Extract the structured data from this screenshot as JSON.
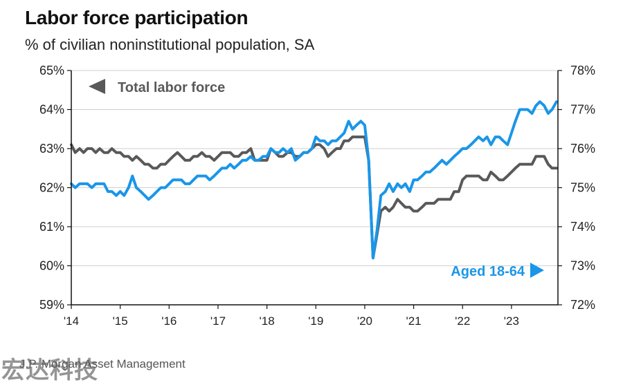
{
  "title": "Labor force participation",
  "subtitle": "% of civilian noninstitutional population, SA",
  "source": "J.P. Morgan Asset Management",
  "watermark": "宏达科技",
  "colors": {
    "total": "#595959",
    "aged": "#1a96e8",
    "axis": "#111111",
    "grid": "#cfcfcf"
  },
  "chart_data": {
    "type": "line",
    "x_tick_labels": [
      "'14",
      "'15",
      "'16",
      "'17",
      "'18",
      "'19",
      "'20",
      "'21",
      "'22",
      "'23"
    ],
    "x_range": [
      2014.0,
      2023.95
    ],
    "left_axis": {
      "ylim": [
        59,
        65
      ],
      "ticks": [
        "59%",
        "60%",
        "61%",
        "62%",
        "63%",
        "64%",
        "65%"
      ]
    },
    "right_axis": {
      "ylim": [
        72,
        78
      ],
      "ticks": [
        "72%",
        "73%",
        "74%",
        "75%",
        "76%",
        "77%",
        "78%"
      ]
    },
    "grid": "horizontal",
    "series": [
      {
        "name": "Total labor force",
        "axis": "left",
        "legend_position": "top-left",
        "points": [
          [
            2014.0,
            63.1
          ],
          [
            2014.08,
            62.9
          ],
          [
            2014.17,
            63.0
          ],
          [
            2014.25,
            62.9
          ],
          [
            2014.33,
            63.0
          ],
          [
            2014.42,
            63.0
          ],
          [
            2014.5,
            62.9
          ],
          [
            2014.58,
            63.0
          ],
          [
            2014.67,
            62.9
          ],
          [
            2014.75,
            62.9
          ],
          [
            2014.83,
            63.0
          ],
          [
            2014.92,
            62.9
          ],
          [
            2015.0,
            62.9
          ],
          [
            2015.08,
            62.8
          ],
          [
            2015.17,
            62.8
          ],
          [
            2015.25,
            62.7
          ],
          [
            2015.33,
            62.8
          ],
          [
            2015.42,
            62.7
          ],
          [
            2015.5,
            62.6
          ],
          [
            2015.58,
            62.6
          ],
          [
            2015.67,
            62.5
          ],
          [
            2015.75,
            62.5
          ],
          [
            2015.83,
            62.6
          ],
          [
            2015.92,
            62.6
          ],
          [
            2016.0,
            62.7
          ],
          [
            2016.08,
            62.8
          ],
          [
            2016.17,
            62.9
          ],
          [
            2016.25,
            62.8
          ],
          [
            2016.33,
            62.7
          ],
          [
            2016.42,
            62.7
          ],
          [
            2016.5,
            62.8
          ],
          [
            2016.58,
            62.8
          ],
          [
            2016.67,
            62.9
          ],
          [
            2016.75,
            62.8
          ],
          [
            2016.83,
            62.8
          ],
          [
            2016.92,
            62.7
          ],
          [
            2017.0,
            62.8
          ],
          [
            2017.08,
            62.9
          ],
          [
            2017.17,
            62.9
          ],
          [
            2017.25,
            62.9
          ],
          [
            2017.33,
            62.8
          ],
          [
            2017.42,
            62.8
          ],
          [
            2017.5,
            62.9
          ],
          [
            2017.58,
            62.9
          ],
          [
            2017.67,
            63.0
          ],
          [
            2017.75,
            62.7
          ],
          [
            2017.83,
            62.7
          ],
          [
            2017.92,
            62.7
          ],
          [
            2018.0,
            62.7
          ],
          [
            2018.08,
            63.0
          ],
          [
            2018.17,
            62.9
          ],
          [
            2018.25,
            62.8
          ],
          [
            2018.33,
            62.8
          ],
          [
            2018.42,
            62.9
          ],
          [
            2018.5,
            62.9
          ],
          [
            2018.58,
            62.8
          ],
          [
            2018.67,
            62.8
          ],
          [
            2018.75,
            62.9
          ],
          [
            2018.83,
            62.9
          ],
          [
            2018.92,
            63.0
          ],
          [
            2019.0,
            63.1
          ],
          [
            2019.08,
            63.1
          ],
          [
            2019.17,
            63.0
          ],
          [
            2019.25,
            62.8
          ],
          [
            2019.33,
            62.9
          ],
          [
            2019.42,
            63.0
          ],
          [
            2019.5,
            63.0
          ],
          [
            2019.58,
            63.2
          ],
          [
            2019.67,
            63.2
          ],
          [
            2019.75,
            63.3
          ],
          [
            2019.83,
            63.3
          ],
          [
            2019.92,
            63.3
          ],
          [
            2020.0,
            63.3
          ],
          [
            2020.08,
            62.7
          ],
          [
            2020.17,
            60.2
          ],
          [
            2020.25,
            60.8
          ],
          [
            2020.33,
            61.4
          ],
          [
            2020.42,
            61.5
          ],
          [
            2020.5,
            61.4
          ],
          [
            2020.58,
            61.5
          ],
          [
            2020.67,
            61.7
          ],
          [
            2020.75,
            61.6
          ],
          [
            2020.83,
            61.5
          ],
          [
            2020.92,
            61.5
          ],
          [
            2021.0,
            61.4
          ],
          [
            2021.08,
            61.4
          ],
          [
            2021.17,
            61.5
          ],
          [
            2021.25,
            61.6
          ],
          [
            2021.33,
            61.6
          ],
          [
            2021.42,
            61.6
          ],
          [
            2021.5,
            61.7
          ],
          [
            2021.58,
            61.7
          ],
          [
            2021.67,
            61.7
          ],
          [
            2021.75,
            61.7
          ],
          [
            2021.83,
            61.9
          ],
          [
            2021.92,
            61.9
          ],
          [
            2022.0,
            62.2
          ],
          [
            2022.08,
            62.3
          ],
          [
            2022.17,
            62.3
          ],
          [
            2022.25,
            62.3
          ],
          [
            2022.33,
            62.3
          ],
          [
            2022.42,
            62.2
          ],
          [
            2022.5,
            62.2
          ],
          [
            2022.58,
            62.4
          ],
          [
            2022.67,
            62.3
          ],
          [
            2022.75,
            62.2
          ],
          [
            2022.83,
            62.2
          ],
          [
            2022.92,
            62.3
          ],
          [
            2023.0,
            62.4
          ],
          [
            2023.08,
            62.5
          ],
          [
            2023.17,
            62.6
          ],
          [
            2023.25,
            62.6
          ],
          [
            2023.33,
            62.6
          ],
          [
            2023.42,
            62.6
          ],
          [
            2023.5,
            62.8
          ],
          [
            2023.58,
            62.8
          ],
          [
            2023.67,
            62.8
          ],
          [
            2023.75,
            62.6
          ],
          [
            2023.83,
            62.5
          ],
          [
            2023.92,
            62.5
          ]
        ]
      },
      {
        "name": "Aged 18-64",
        "axis": "right",
        "legend_position": "bottom-right",
        "points": [
          [
            2014.0,
            75.1
          ],
          [
            2014.08,
            75.0
          ],
          [
            2014.17,
            75.1
          ],
          [
            2014.25,
            75.1
          ],
          [
            2014.33,
            75.1
          ],
          [
            2014.42,
            75.0
          ],
          [
            2014.5,
            75.1
          ],
          [
            2014.58,
            75.1
          ],
          [
            2014.67,
            75.1
          ],
          [
            2014.75,
            74.9
          ],
          [
            2014.83,
            74.9
          ],
          [
            2014.92,
            74.8
          ],
          [
            2015.0,
            74.9
          ],
          [
            2015.08,
            74.8
          ],
          [
            2015.17,
            75.0
          ],
          [
            2015.25,
            75.3
          ],
          [
            2015.33,
            75.0
          ],
          [
            2015.42,
            74.9
          ],
          [
            2015.5,
            74.8
          ],
          [
            2015.58,
            74.7
          ],
          [
            2015.67,
            74.8
          ],
          [
            2015.75,
            74.9
          ],
          [
            2015.83,
            75.0
          ],
          [
            2015.92,
            75.0
          ],
          [
            2016.0,
            75.1
          ],
          [
            2016.08,
            75.2
          ],
          [
            2016.17,
            75.2
          ],
          [
            2016.25,
            75.2
          ],
          [
            2016.33,
            75.1
          ],
          [
            2016.42,
            75.1
          ],
          [
            2016.5,
            75.2
          ],
          [
            2016.58,
            75.3
          ],
          [
            2016.67,
            75.3
          ],
          [
            2016.75,
            75.3
          ],
          [
            2016.83,
            75.2
          ],
          [
            2016.92,
            75.3
          ],
          [
            2017.0,
            75.4
          ],
          [
            2017.08,
            75.5
          ],
          [
            2017.17,
            75.5
          ],
          [
            2017.25,
            75.6
          ],
          [
            2017.33,
            75.5
          ],
          [
            2017.42,
            75.6
          ],
          [
            2017.5,
            75.7
          ],
          [
            2017.58,
            75.7
          ],
          [
            2017.67,
            75.8
          ],
          [
            2017.75,
            75.7
          ],
          [
            2017.83,
            75.7
          ],
          [
            2017.92,
            75.8
          ],
          [
            2018.0,
            75.8
          ],
          [
            2018.08,
            76.0
          ],
          [
            2018.17,
            75.9
          ],
          [
            2018.25,
            75.9
          ],
          [
            2018.33,
            76.0
          ],
          [
            2018.42,
            75.9
          ],
          [
            2018.5,
            76.0
          ],
          [
            2018.58,
            75.7
          ],
          [
            2018.67,
            75.8
          ],
          [
            2018.75,
            75.9
          ],
          [
            2018.83,
            75.9
          ],
          [
            2018.92,
            76.0
          ],
          [
            2019.0,
            76.3
          ],
          [
            2019.08,
            76.2
          ],
          [
            2019.17,
            76.2
          ],
          [
            2019.25,
            76.1
          ],
          [
            2019.33,
            76.2
          ],
          [
            2019.42,
            76.2
          ],
          [
            2019.5,
            76.3
          ],
          [
            2019.58,
            76.4
          ],
          [
            2019.67,
            76.7
          ],
          [
            2019.75,
            76.5
          ],
          [
            2019.83,
            76.6
          ],
          [
            2019.92,
            76.7
          ],
          [
            2020.0,
            76.6
          ],
          [
            2020.08,
            75.7
          ],
          [
            2020.17,
            73.2
          ],
          [
            2020.25,
            73.9
          ],
          [
            2020.33,
            74.8
          ],
          [
            2020.42,
            74.9
          ],
          [
            2020.5,
            75.1
          ],
          [
            2020.58,
            74.9
          ],
          [
            2020.67,
            75.1
          ],
          [
            2020.75,
            75.0
          ],
          [
            2020.83,
            75.1
          ],
          [
            2020.92,
            74.9
          ],
          [
            2021.0,
            75.2
          ],
          [
            2021.08,
            75.2
          ],
          [
            2021.17,
            75.3
          ],
          [
            2021.25,
            75.4
          ],
          [
            2021.33,
            75.4
          ],
          [
            2021.42,
            75.5
          ],
          [
            2021.5,
            75.6
          ],
          [
            2021.58,
            75.7
          ],
          [
            2021.67,
            75.6
          ],
          [
            2021.75,
            75.7
          ],
          [
            2021.83,
            75.8
          ],
          [
            2021.92,
            75.9
          ],
          [
            2022.0,
            76.0
          ],
          [
            2022.08,
            76.0
          ],
          [
            2022.17,
            76.1
          ],
          [
            2022.25,
            76.2
          ],
          [
            2022.33,
            76.3
          ],
          [
            2022.42,
            76.2
          ],
          [
            2022.5,
            76.3
          ],
          [
            2022.58,
            76.1
          ],
          [
            2022.67,
            76.3
          ],
          [
            2022.75,
            76.3
          ],
          [
            2022.83,
            76.2
          ],
          [
            2022.92,
            76.1
          ],
          [
            2023.0,
            76.4
          ],
          [
            2023.08,
            76.7
          ],
          [
            2023.17,
            77.0
          ],
          [
            2023.25,
            77.0
          ],
          [
            2023.33,
            77.0
          ],
          [
            2023.42,
            76.9
          ],
          [
            2023.5,
            77.1
          ],
          [
            2023.58,
            77.2
          ],
          [
            2023.67,
            77.1
          ],
          [
            2023.75,
            76.9
          ],
          [
            2023.83,
            77.0
          ],
          [
            2023.92,
            77.2
          ]
        ]
      }
    ]
  }
}
